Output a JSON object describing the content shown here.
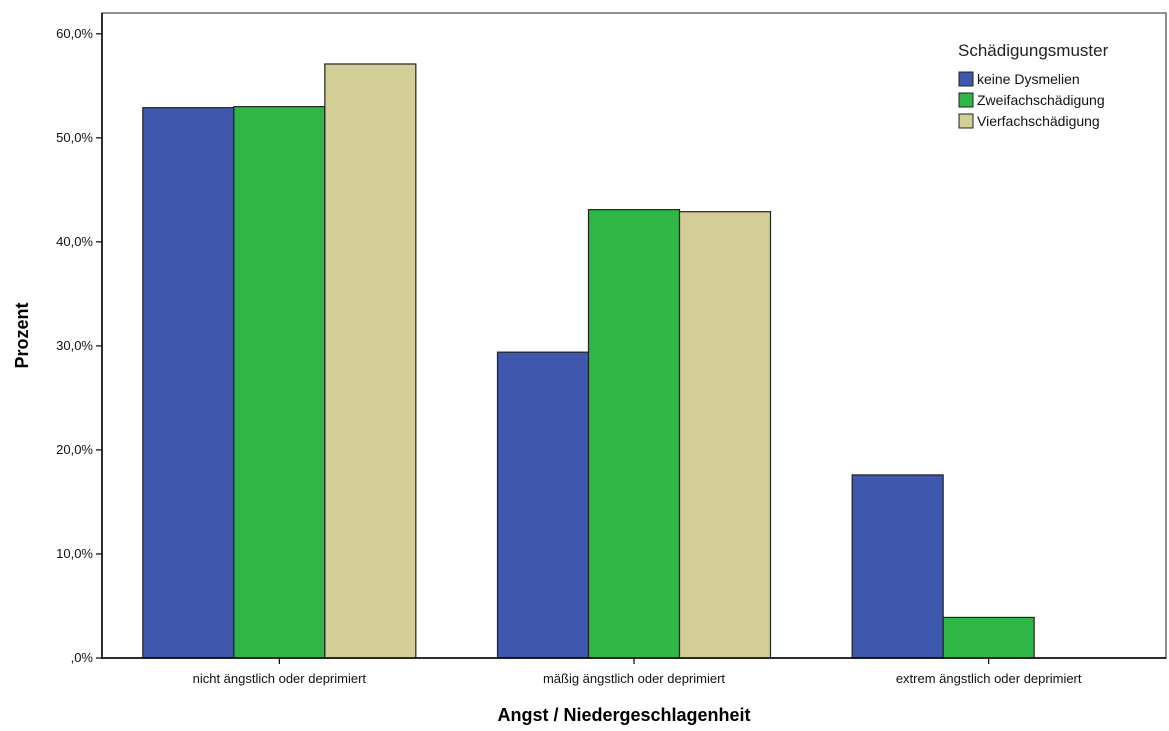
{
  "chart_data": {
    "type": "bar",
    "title": "",
    "xlabel": "Angst / Niedergeschlagenheit",
    "ylabel": "Prozent",
    "ylim": [
      0,
      62
    ],
    "y_ticks": [
      0,
      10,
      20,
      30,
      40,
      50,
      60
    ],
    "y_tick_labels": [
      ",0%",
      "10,0%",
      "20,0%",
      "30,0%",
      "40,0%",
      "50,0%",
      "60,0%"
    ],
    "categories": [
      "nicht ängstlich oder deprimiert",
      "mäßig ängstlich oder deprimiert",
      "extrem ängstlich oder deprimiert"
    ],
    "series": [
      {
        "name": "keine Dysmelien",
        "color": "#3f57ad",
        "values": [
          52.9,
          29.4,
          17.6
        ]
      },
      {
        "name": "Zweifachschädigung",
        "color": "#2eb746",
        "values": [
          53.0,
          43.1,
          3.9
        ]
      },
      {
        "name": "Vierfachschädigung",
        "color": "#d3cd96",
        "values": [
          57.1,
          42.9,
          0
        ]
      }
    ],
    "legend": {
      "title": "Schädigungsmuster",
      "position": "top-right"
    },
    "grid": false
  }
}
